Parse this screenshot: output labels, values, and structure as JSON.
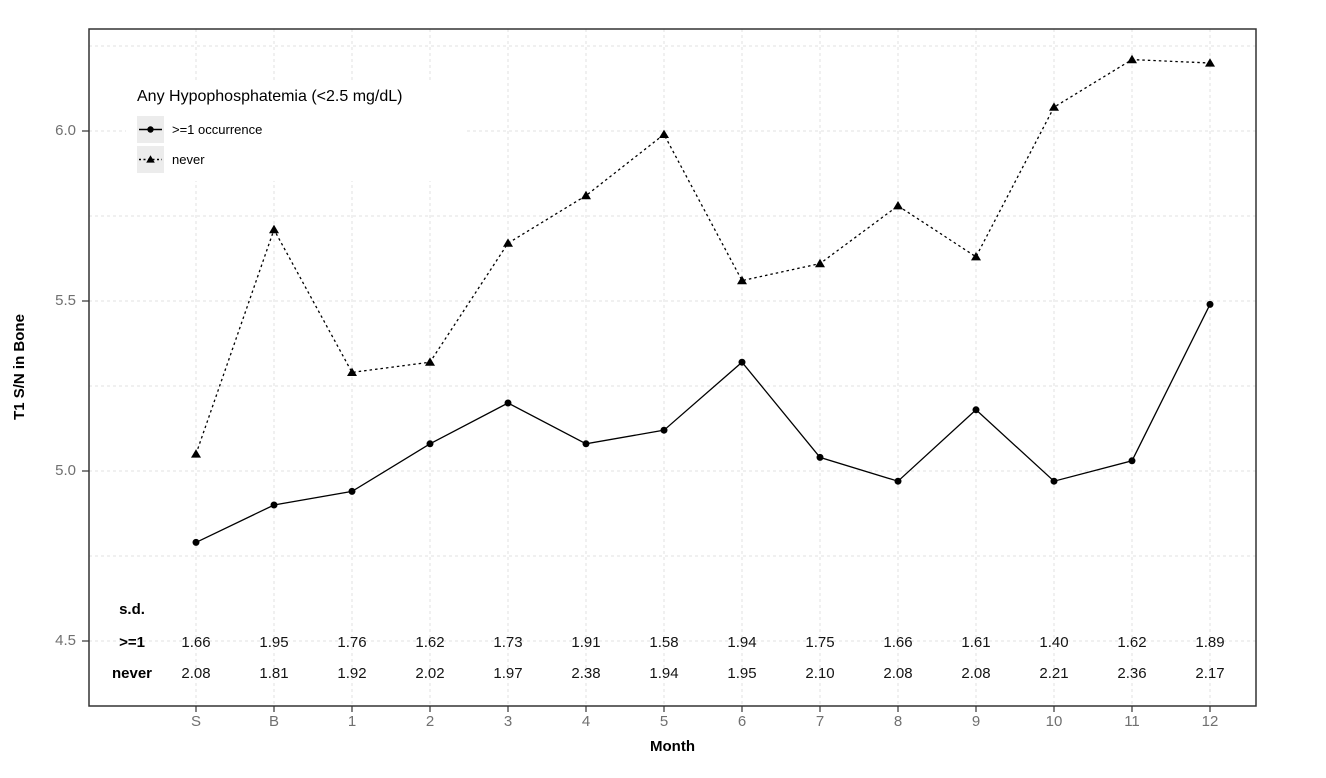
{
  "page": {
    "background": "#ffffff"
  },
  "legend": {
    "title": "Any Hypophosphatemia (<2.5 mg/dL)",
    "items": [
      {
        "label": ">=1 occurrence",
        "marker": "circle",
        "line": "solid"
      },
      {
        "label": "never",
        "marker": "triangle",
        "line": "dotted"
      }
    ]
  },
  "sd_table": {
    "header": "s.d.",
    "rows": [
      {
        "label": ">=1",
        "values": [
          "1.66",
          "1.95",
          "1.76",
          "1.62",
          "1.73",
          "1.91",
          "1.58",
          "1.94",
          "1.75",
          "1.66",
          "1.61",
          "1.40",
          "1.62",
          "1.89"
        ]
      },
      {
        "label": "never",
        "values": [
          "2.08",
          "1.81",
          "1.92",
          "2.02",
          "1.97",
          "2.38",
          "1.94",
          "1.95",
          "2.10",
          "2.08",
          "2.08",
          "2.21",
          "2.36",
          "2.17"
        ]
      }
    ]
  },
  "chart_data": {
    "type": "line",
    "title": "",
    "xlabel": "Month",
    "ylabel": "T1 S/N in Bone",
    "categories": [
      "S",
      "B",
      "1",
      "2",
      "3",
      "4",
      "5",
      "6",
      "7",
      "8",
      "9",
      "10",
      "11",
      "12"
    ],
    "series": [
      {
        "name": ">=1 occurrence",
        "marker": "circle",
        "line": "solid",
        "values": [
          4.79,
          4.9,
          4.94,
          5.08,
          5.2,
          5.08,
          5.12,
          5.32,
          5.04,
          4.97,
          5.18,
          4.97,
          5.03,
          5.49
        ]
      },
      {
        "name": "never",
        "marker": "triangle",
        "line": "dotted",
        "values": [
          5.05,
          5.71,
          5.29,
          5.32,
          5.67,
          5.81,
          5.99,
          5.56,
          5.61,
          5.78,
          5.63,
          6.07,
          6.21,
          6.2
        ]
      }
    ],
    "y_ticks": [
      4.5,
      5.0,
      5.5,
      6.0
    ],
    "y_tick_labels": [
      "4.5",
      "5.0",
      "5.5",
      "6.0"
    ],
    "y_minor_step": 0.25,
    "ylim": [
      4.3,
      6.3
    ],
    "grid": "dashed",
    "legend_position": "top-left-inside",
    "colors": {
      "series": "#000000",
      "grid": "#e2e2e2",
      "axis_text": "#707070",
      "panel_border": "#333333",
      "legend_key_bg": "#ececec",
      "legend_bg": "#ffffff"
    }
  }
}
